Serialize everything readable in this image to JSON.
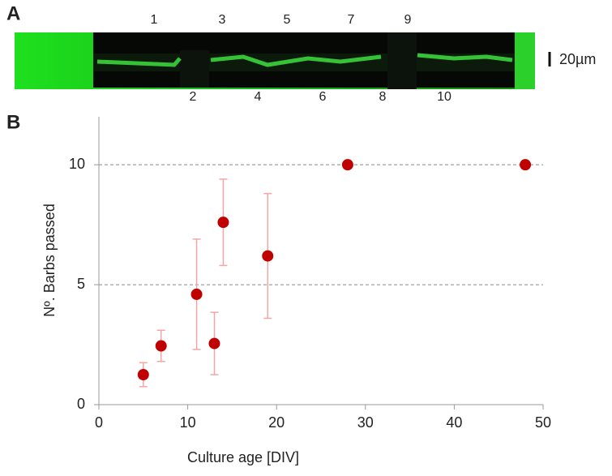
{
  "panel_a": {
    "label": "A",
    "top_numbers": [
      "1",
      "3",
      "5",
      "7",
      "9"
    ],
    "bottom_numbers": [
      "2",
      "4",
      "6",
      "8",
      "10"
    ],
    "scale_bar": "20µm"
  },
  "chart_data": {
    "type": "scatter",
    "panel_label": "B",
    "x_label": "Culture age [DIV]",
    "y_label": "Nº. Barbs passed",
    "x": [
      5,
      7,
      11,
      13,
      14,
      19,
      28,
      48
    ],
    "values": [
      1.25,
      2.45,
      4.6,
      2.55,
      7.6,
      6.2,
      10,
      10
    ],
    "errors": [
      0.5,
      0.65,
      2.3,
      1.3,
      1.8,
      2.6,
      null,
      null
    ],
    "color": "#c00000",
    "error_color": "#f4a6a6",
    "xlim": [
      0,
      50
    ],
    "xticks": [
      0,
      10,
      20,
      30,
      40,
      50
    ],
    "ylim": [
      0,
      12
    ],
    "yticks": [
      0,
      5,
      10
    ],
    "grid": true
  }
}
